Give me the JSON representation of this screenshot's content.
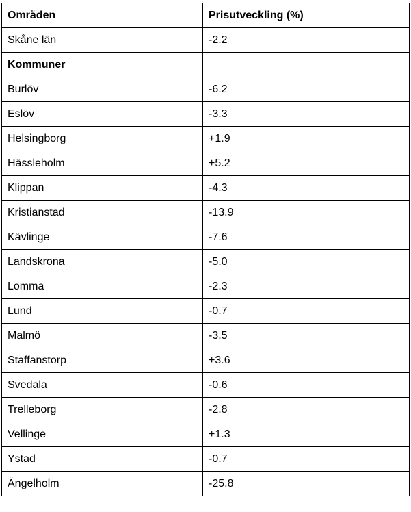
{
  "table": {
    "headers": [
      "Områden",
      "Prisutveckling (%)"
    ],
    "region_row": {
      "area": "Skåne län",
      "value": "-2.2"
    },
    "group_label": "Kommuner",
    "rows": [
      {
        "area": "Burlöv",
        "value": "-6.2"
      },
      {
        "area": "Eslöv",
        "value": "-3.3"
      },
      {
        "area": "Helsingborg",
        "value": "+1.9"
      },
      {
        "area": "Hässleholm",
        "value": "+5.2"
      },
      {
        "area": "Klippan",
        "value": "-4.3"
      },
      {
        "area": "Kristianstad",
        "value": "-13.9"
      },
      {
        "area": "Kävlinge",
        "value": "-7.6"
      },
      {
        "area": "Landskrona",
        "value": "-5.0"
      },
      {
        "area": "Lomma",
        "value": "-2.3"
      },
      {
        "area": "Lund",
        "value": "-0.7"
      },
      {
        "area": "Malmö",
        "value": "-3.5"
      },
      {
        "area": "Staffanstorp",
        "value": "+3.6"
      },
      {
        "area": "Svedala",
        "value": "-0.6"
      },
      {
        "area": "Trelleborg",
        "value": "-2.8"
      },
      {
        "area": "Vellinge",
        "value": "+1.3"
      },
      {
        "area": "Ystad",
        "value": "-0.7"
      },
      {
        "area": "Ängelholm",
        "value": "-25.8"
      }
    ]
  }
}
